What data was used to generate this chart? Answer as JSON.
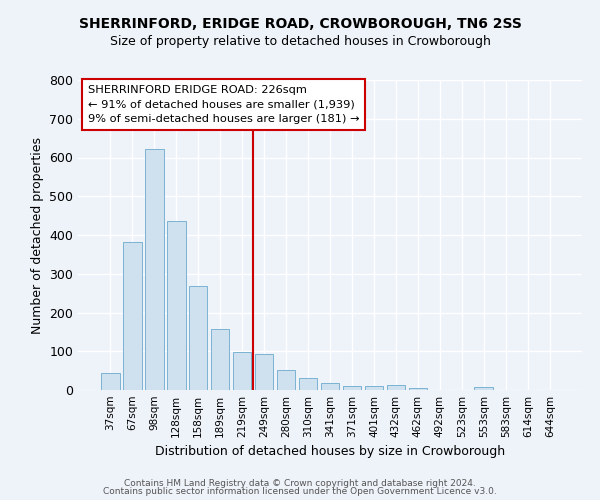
{
  "title1": "SHERRINFORD, ERIDGE ROAD, CROWBOROUGH, TN6 2SS",
  "title2": "Size of property relative to detached houses in Crowborough",
  "xlabel": "Distribution of detached houses by size in Crowborough",
  "ylabel": "Number of detached properties",
  "categories": [
    "37sqm",
    "67sqm",
    "98sqm",
    "128sqm",
    "158sqm",
    "189sqm",
    "219sqm",
    "249sqm",
    "280sqm",
    "310sqm",
    "341sqm",
    "371sqm",
    "401sqm",
    "432sqm",
    "462sqm",
    "492sqm",
    "523sqm",
    "553sqm",
    "583sqm",
    "614sqm",
    "644sqm"
  ],
  "values": [
    45,
    383,
    622,
    437,
    268,
    157,
    97,
    93,
    52,
    32,
    18,
    10,
    11,
    12,
    5,
    0,
    0,
    8,
    0,
    0,
    0
  ],
  "bar_color": "#cfe0ef",
  "bar_edge_color": "#7ab3d3",
  "vline_x": 6.5,
  "vline_color": "#cc0000",
  "annotation_title": "SHERRINFORD ERIDGE ROAD: 226sqm",
  "annotation_line1": "← 91% of detached houses are smaller (1,939)",
  "annotation_line2": "9% of semi-detached houses are larger (181) →",
  "annotation_box_facecolor": "#ffffff",
  "annotation_box_edgecolor": "#cc0000",
  "ylim": [
    0,
    800
  ],
  "yticks": [
    0,
    100,
    200,
    300,
    400,
    500,
    600,
    700,
    800
  ],
  "bg_color": "#eef2f9",
  "grid_color": "#ffffff",
  "footer1": "Contains HM Land Registry data © Crown copyright and database right 2024.",
  "footer2": "Contains public sector information licensed under the Open Government Licence v3.0."
}
